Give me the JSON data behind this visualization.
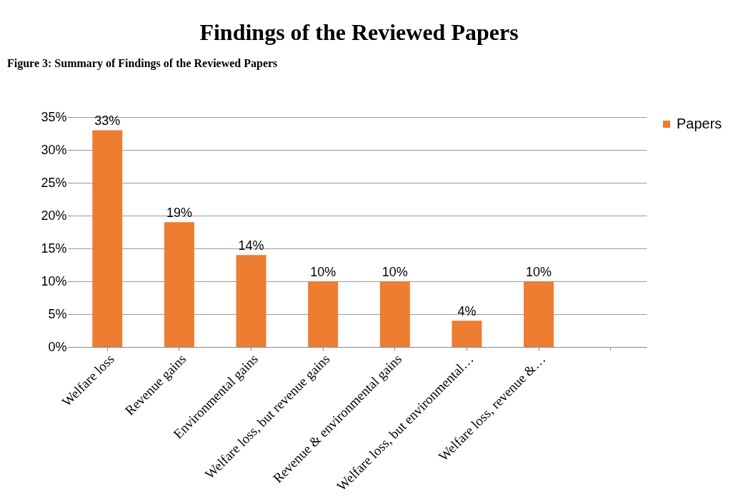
{
  "chart_data": {
    "type": "bar",
    "title": "Findings of the Reviewed Papers",
    "annotations": [
      "Figure 3: Summary of Findings of the Reviewed Papers"
    ],
    "categories": [
      "Welfare loss",
      "Revenue gains",
      "Environmental gains",
      "Welfare loss, but revenue gains",
      "Revenue & environmental gains",
      "Welfare loss, but environmental…",
      "Welfare loss, revenue &…",
      null
    ],
    "series": [
      {
        "name": "Papers",
        "color": "#ed7d31",
        "values": [
          33,
          19,
          14,
          10,
          10,
          4,
          10,
          null
        ],
        "value_labels": [
          "33%",
          "19%",
          "14%",
          "10%",
          "10%",
          "4%",
          "10%",
          null
        ]
      }
    ],
    "ylim": [
      0,
      35
    ],
    "yticks": [
      {
        "value": 0,
        "label": "0%"
      },
      {
        "value": 5,
        "label": "5%"
      },
      {
        "value": 10,
        "label": "10%"
      },
      {
        "value": 15,
        "label": "15%"
      },
      {
        "value": 20,
        "label": "20%"
      },
      {
        "value": 25,
        "label": "25%"
      },
      {
        "value": 30,
        "label": "30%"
      },
      {
        "value": 35,
        "label": "35%"
      }
    ],
    "grid": "y",
    "legend": "right"
  }
}
